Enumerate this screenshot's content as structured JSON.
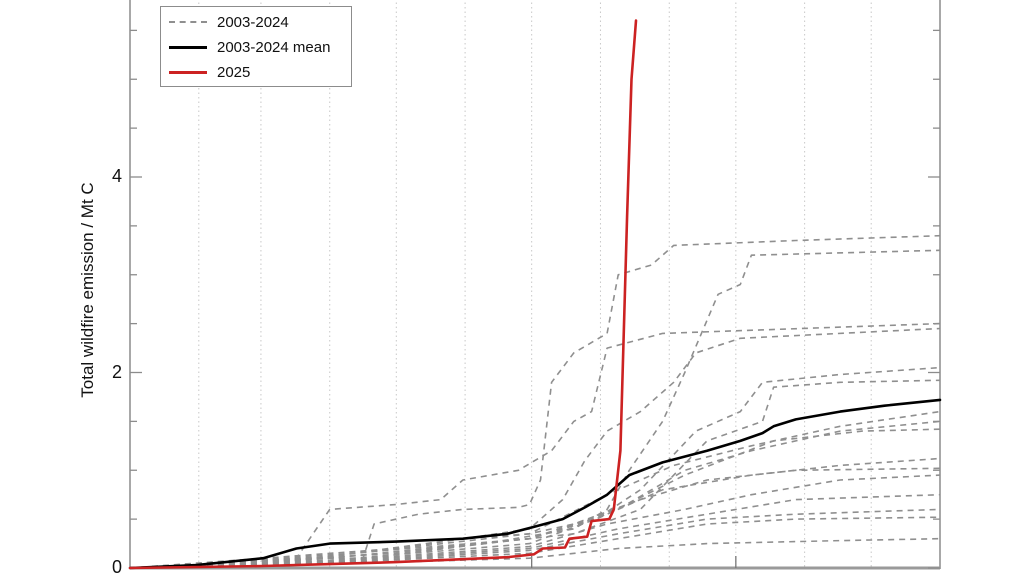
{
  "chart_data": {
    "type": "line",
    "title": "",
    "xlabel": "",
    "ylabel": "Total wildfire emission / Mt C",
    "x_units": "day of year",
    "xlim": [
      0,
      365
    ],
    "ylim": [
      0,
      5.8
    ],
    "yticks": [
      0,
      2,
      4
    ],
    "ytick_labels": [
      "0",
      "2",
      "4"
    ],
    "y_minor_step": 0.5,
    "x_gridlines_days": [
      31,
      59,
      90,
      120,
      151,
      181,
      212,
      243,
      273,
      304,
      334
    ],
    "x_major_ticks_days": [
      181,
      273
    ],
    "grid": "vertical dotted",
    "legend": {
      "position": "upper left",
      "entries": [
        {
          "label": "2003-2024",
          "style": "dashed",
          "color": "#8f8f8f"
        },
        {
          "label": "2003-2024 mean",
          "style": "solid",
          "color": "#000000"
        },
        {
          "label": "2025",
          "style": "solid",
          "color": "#cc2222"
        }
      ]
    },
    "series": [
      {
        "name": "2025",
        "color": "#cc2222",
        "style": "solid",
        "points": [
          [
            0,
            0
          ],
          [
            30,
            0.01
          ],
          [
            60,
            0.02
          ],
          [
            90,
            0.04
          ],
          [
            120,
            0.06
          ],
          [
            150,
            0.09
          ],
          [
            170,
            0.11
          ],
          [
            182,
            0.14
          ],
          [
            186,
            0.2
          ],
          [
            196,
            0.21
          ],
          [
            198,
            0.3
          ],
          [
            206,
            0.32
          ],
          [
            208,
            0.48
          ],
          [
            216,
            0.5
          ],
          [
            218,
            0.6
          ],
          [
            221,
            1.2
          ],
          [
            224,
            3.6
          ],
          [
            226,
            5.0
          ],
          [
            228,
            5.6
          ]
        ]
      },
      {
        "name": "2003-2024 mean",
        "color": "#000000",
        "style": "solid",
        "points": [
          [
            0,
            0
          ],
          [
            30,
            0.03
          ],
          [
            60,
            0.1
          ],
          [
            75,
            0.2
          ],
          [
            90,
            0.25
          ],
          [
            120,
            0.27
          ],
          [
            150,
            0.3
          ],
          [
            170,
            0.35
          ],
          [
            182,
            0.42
          ],
          [
            195,
            0.5
          ],
          [
            205,
            0.62
          ],
          [
            215,
            0.75
          ],
          [
            225,
            0.95
          ],
          [
            240,
            1.08
          ],
          [
            260,
            1.2
          ],
          [
            275,
            1.3
          ],
          [
            285,
            1.38
          ],
          [
            290,
            1.45
          ],
          [
            300,
            1.52
          ],
          [
            320,
            1.6
          ],
          [
            340,
            1.66
          ],
          [
            365,
            1.72
          ]
        ]
      },
      {
        "name": "2003-2024 #1",
        "color": "#8f8f8f",
        "style": "dashed",
        "points": [
          [
            0,
            0
          ],
          [
            60,
            0.05
          ],
          [
            90,
            0.1
          ],
          [
            105,
            0.1
          ],
          [
            110,
            0.45
          ],
          [
            130,
            0.55
          ],
          [
            150,
            0.6
          ],
          [
            175,
            0.62
          ],
          [
            180,
            0.65
          ],
          [
            185,
            0.9
          ],
          [
            190,
            1.9
          ],
          [
            200,
            2.2
          ],
          [
            215,
            2.4
          ],
          [
            220,
            3.0
          ],
          [
            235,
            3.1
          ],
          [
            245,
            3.3
          ],
          [
            300,
            3.35
          ],
          [
            365,
            3.4
          ]
        ]
      },
      {
        "name": "2003-2024 #2",
        "color": "#8f8f8f",
        "style": "dashed",
        "points": [
          [
            0,
            0
          ],
          [
            90,
            0.05
          ],
          [
            160,
            0.25
          ],
          [
            200,
            0.4
          ],
          [
            215,
            0.6
          ],
          [
            225,
            1.0
          ],
          [
            240,
            1.5
          ],
          [
            250,
            2.0
          ],
          [
            265,
            2.8
          ],
          [
            275,
            2.9
          ],
          [
            280,
            3.2
          ],
          [
            365,
            3.25
          ]
        ]
      },
      {
        "name": "2003-2024 #3",
        "color": "#8f8f8f",
        "style": "dashed",
        "points": [
          [
            0,
            0
          ],
          [
            75,
            0.1
          ],
          [
            90,
            0.6
          ],
          [
            120,
            0.65
          ],
          [
            140,
            0.7
          ],
          [
            150,
            0.9
          ],
          [
            175,
            1.0
          ],
          [
            190,
            1.2
          ],
          [
            200,
            1.5
          ],
          [
            208,
            1.6
          ],
          [
            215,
            2.25
          ],
          [
            240,
            2.4
          ],
          [
            365,
            2.5
          ]
        ]
      },
      {
        "name": "2003-2024 #4",
        "color": "#8f8f8f",
        "style": "dashed",
        "points": [
          [
            0,
            0
          ],
          [
            120,
            0.2
          ],
          [
            180,
            0.4
          ],
          [
            195,
            0.7
          ],
          [
            205,
            1.1
          ],
          [
            215,
            1.4
          ],
          [
            230,
            1.6
          ],
          [
            245,
            1.9
          ],
          [
            255,
            2.2
          ],
          [
            275,
            2.35
          ],
          [
            365,
            2.45
          ]
        ]
      },
      {
        "name": "2003-2024 #5",
        "color": "#8f8f8f",
        "style": "dashed",
        "points": [
          [
            0,
            0
          ],
          [
            100,
            0.15
          ],
          [
            180,
            0.3
          ],
          [
            210,
            0.5
          ],
          [
            230,
            0.8
          ],
          [
            255,
            1.4
          ],
          [
            275,
            1.6
          ],
          [
            285,
            1.9
          ],
          [
            320,
            1.98
          ],
          [
            365,
            2.05
          ]
        ]
      },
      {
        "name": "2003-2024 #6",
        "color": "#8f8f8f",
        "style": "dashed",
        "points": [
          [
            0,
            0
          ],
          [
            120,
            0.15
          ],
          [
            200,
            0.35
          ],
          [
            230,
            0.6
          ],
          [
            260,
            1.3
          ],
          [
            285,
            1.5
          ],
          [
            290,
            1.85
          ],
          [
            320,
            1.9
          ],
          [
            365,
            1.92
          ]
        ]
      },
      {
        "name": "2003-2024 #7",
        "color": "#8f8f8f",
        "style": "dashed",
        "points": [
          [
            0,
            0
          ],
          [
            90,
            0.1
          ],
          [
            180,
            0.3
          ],
          [
            220,
            0.6
          ],
          [
            250,
            1.0
          ],
          [
            280,
            1.2
          ],
          [
            320,
            1.4
          ],
          [
            365,
            1.5
          ]
        ]
      },
      {
        "name": "2003-2024 #8",
        "color": "#8f8f8f",
        "style": "dashed",
        "points": [
          [
            0,
            0
          ],
          [
            90,
            0.12
          ],
          [
            180,
            0.35
          ],
          [
            215,
            0.75
          ],
          [
            245,
            1.05
          ],
          [
            280,
            1.25
          ],
          [
            320,
            1.45
          ],
          [
            365,
            1.6
          ]
        ]
      },
      {
        "name": "2003-2024 #9",
        "color": "#8f8f8f",
        "style": "dashed",
        "points": [
          [
            0,
            0
          ],
          [
            90,
            0.1
          ],
          [
            180,
            0.3
          ],
          [
            215,
            0.55
          ],
          [
            250,
            0.95
          ],
          [
            290,
            1.3
          ],
          [
            330,
            1.4
          ],
          [
            365,
            1.42
          ]
        ]
      },
      {
        "name": "2003-2024 #10",
        "color": "#8f8f8f",
        "style": "dashed",
        "points": [
          [
            0,
            0
          ],
          [
            90,
            0.08
          ],
          [
            180,
            0.25
          ],
          [
            210,
            0.5
          ],
          [
            240,
            0.8
          ],
          [
            280,
            0.95
          ],
          [
            320,
            1.05
          ],
          [
            365,
            1.12
          ]
        ]
      },
      {
        "name": "2003-2024 #11",
        "color": "#8f8f8f",
        "style": "dashed",
        "points": [
          [
            0,
            0
          ],
          [
            90,
            0.07
          ],
          [
            180,
            0.22
          ],
          [
            215,
            0.45
          ],
          [
            250,
            0.6
          ],
          [
            280,
            0.75
          ],
          [
            320,
            0.9
          ],
          [
            365,
            0.95
          ]
        ]
      },
      {
        "name": "2003-2024 #12",
        "color": "#8f8f8f",
        "style": "dashed",
        "points": [
          [
            0,
            0
          ],
          [
            90,
            0.06
          ],
          [
            180,
            0.2
          ],
          [
            220,
            0.4
          ],
          [
            260,
            0.55
          ],
          [
            300,
            0.7
          ],
          [
            365,
            0.75
          ]
        ]
      },
      {
        "name": "2003-2024 #13",
        "color": "#8f8f8f",
        "style": "dashed",
        "points": [
          [
            0,
            0
          ],
          [
            90,
            0.05
          ],
          [
            180,
            0.18
          ],
          [
            220,
            0.35
          ],
          [
            260,
            0.5
          ],
          [
            300,
            0.55
          ],
          [
            365,
            0.6
          ]
        ]
      },
      {
        "name": "2003-2024 #14",
        "color": "#8f8f8f",
        "style": "dashed",
        "points": [
          [
            0,
            0
          ],
          [
            90,
            0.05
          ],
          [
            180,
            0.15
          ],
          [
            220,
            0.3
          ],
          [
            260,
            0.45
          ],
          [
            300,
            0.5
          ],
          [
            365,
            0.52
          ]
        ]
      },
      {
        "name": "2003-2024 #15",
        "color": "#8f8f8f",
        "style": "dashed",
        "points": [
          [
            0,
            0
          ],
          [
            90,
            0.04
          ],
          [
            180,
            0.1
          ],
          [
            220,
            0.2
          ],
          [
            260,
            0.25
          ],
          [
            320,
            0.28
          ],
          [
            365,
            0.3
          ]
        ]
      },
      {
        "name": "2003-2024 #16",
        "color": "#8f8f8f",
        "style": "dashed",
        "points": [
          [
            0,
            0
          ],
          [
            60,
            0.05
          ],
          [
            90,
            0.12
          ],
          [
            150,
            0.3
          ],
          [
            180,
            0.35
          ],
          [
            200,
            0.45
          ],
          [
            230,
            0.7
          ],
          [
            260,
            0.9
          ],
          [
            300,
            1.0
          ],
          [
            365,
            1.02
          ]
        ]
      }
    ]
  }
}
